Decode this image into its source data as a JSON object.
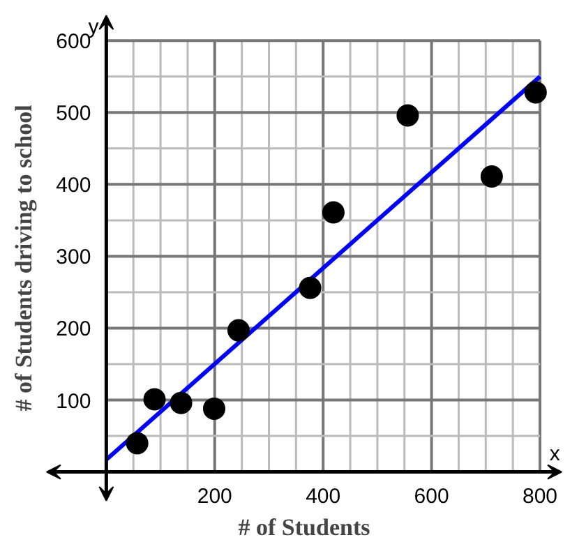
{
  "chart_data": {
    "type": "scatter",
    "xlabel": "# of Students",
    "ylabel": "# of Students driving to school",
    "annotations": [
      "x",
      "y"
    ],
    "xlim": [
      -115,
      845
    ],
    "ylim": [
      -45,
      640
    ],
    "xticks": [
      200,
      400,
      600,
      800
    ],
    "yticks": [
      100,
      200,
      300,
      400,
      500,
      600
    ],
    "grid": true,
    "series": [
      {
        "marker": "circle",
        "color": "#000000",
        "x": [
          57,
          89,
          138,
          199,
          244,
          376,
          419,
          556,
          711,
          792
        ],
        "values": [
          40,
          101,
          96,
          88,
          197,
          256,
          361,
          496,
          411,
          528
        ]
      },
      {
        "type": "line",
        "color": "#0000ff",
        "x": [
          0,
          800
        ],
        "values": [
          17,
          550
        ],
        "line_style": "solid"
      }
    ]
  }
}
